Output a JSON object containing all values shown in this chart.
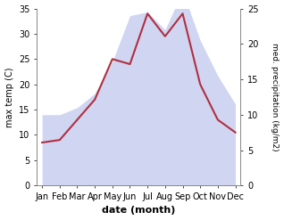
{
  "months": [
    "Jan",
    "Feb",
    "Mar",
    "Apr",
    "May",
    "Jun",
    "Jul",
    "Aug",
    "Sep",
    "Oct",
    "Nov",
    "Dec"
  ],
  "temperature": [
    8.5,
    9.0,
    13.0,
    17.0,
    25.0,
    24.0,
    34.0,
    29.5,
    34.0,
    20.0,
    13.0,
    10.5
  ],
  "precipitation_kg": [
    10.0,
    10.0,
    11.0,
    13.0,
    17.5,
    24.0,
    24.5,
    22.0,
    27.5,
    20.5,
    15.5,
    11.5
  ],
  "temp_color": "#b03040",
  "precip_color": "#aab4e8",
  "precip_alpha": 0.55,
  "temp_ylim": [
    0,
    35
  ],
  "precip_ylim": [
    0,
    25
  ],
  "temp_yticks": [
    0,
    5,
    10,
    15,
    20,
    25,
    30,
    35
  ],
  "precip_yticks": [
    0,
    5,
    10,
    15,
    20,
    25
  ],
  "ylabel_left": "max temp (C)",
  "ylabel_right": "med. precipitation (kg/m2)",
  "xlabel": "date (month)",
  "bg_color": "#ffffff"
}
